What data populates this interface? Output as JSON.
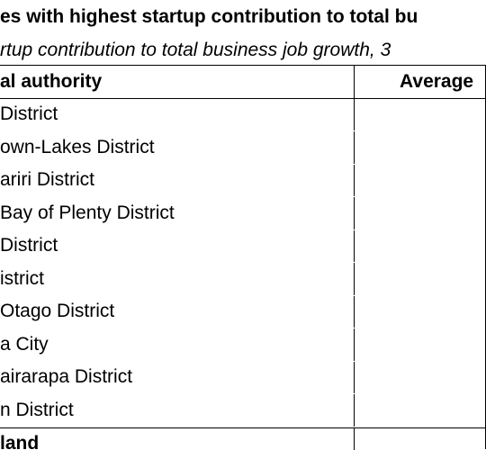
{
  "title": "es with highest startup contribution to total bu",
  "subtitle": "rtup contribution to total business job growth, 3",
  "table": {
    "headers": {
      "authority": "al authority",
      "value": "Average"
    },
    "rows": [
      {
        "authority": "District",
        "value": ""
      },
      {
        "authority": "own-Lakes District",
        "value": ""
      },
      {
        "authority": "ariri District",
        "value": ""
      },
      {
        "authority": "Bay of Plenty District",
        "value": ""
      },
      {
        "authority": "District",
        "value": ""
      },
      {
        "authority": "istrict",
        "value": ""
      },
      {
        "authority": "Otago District",
        "value": ""
      },
      {
        "authority": "a City",
        "value": ""
      },
      {
        "authority": "airarapa District",
        "value": ""
      },
      {
        "authority": "n District",
        "value": ""
      }
    ],
    "total": {
      "authority": "land",
      "value": ""
    }
  }
}
